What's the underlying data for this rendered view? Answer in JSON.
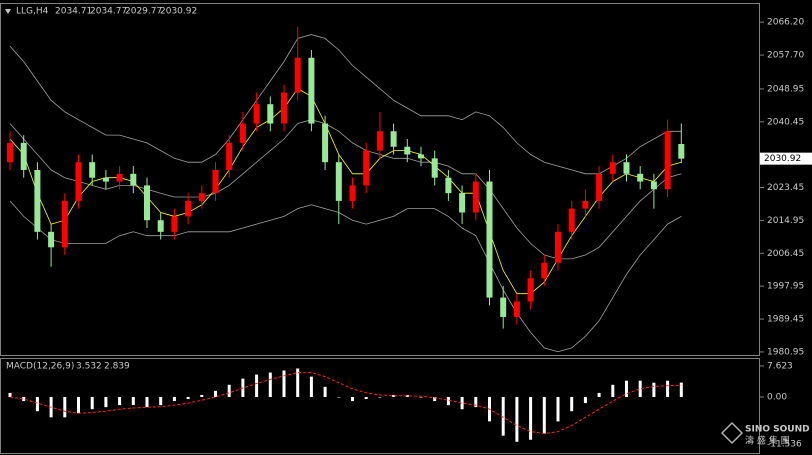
{
  "chart_data": [
    {
      "type": "candlestick",
      "symbol": "LLG,H4",
      "last_bar": [
        2034.71,
        2034.77,
        2029.77,
        2030.92
      ],
      "up_color": "#ff0000",
      "down_color": "#98e898",
      "open": [
        2030,
        2035,
        2028,
        2012,
        2008,
        2020,
        2030,
        2026,
        2025,
        2027,
        2024,
        2015,
        2012,
        2016,
        2020,
        2022,
        2028,
        2035,
        2040,
        2045,
        2040,
        2048,
        2057,
        2040,
        2030,
        2020,
        2024,
        2033,
        2038,
        2034,
        2032,
        2031,
        2026,
        2022,
        2017,
        2025,
        1995,
        1990,
        1994,
        2000,
        2004,
        2012,
        2018,
        2020,
        2027,
        2030,
        2027,
        2025,
        2023,
        2034.71
      ],
      "high": [
        2038,
        2037,
        2030,
        2014,
        2022,
        2032,
        2032,
        2028,
        2029,
        2029,
        2026,
        2017,
        2018,
        2022,
        2024,
        2030,
        2037,
        2043,
        2048,
        2047,
        2050,
        2065,
        2059,
        2042,
        2032,
        2026,
        2035,
        2043,
        2040,
        2036,
        2034,
        2033,
        2028,
        2024,
        2027,
        2028,
        1998,
        1996,
        2002,
        2006,
        2014,
        2020,
        2023,
        2029,
        2032,
        2032,
        2029,
        2027,
        2041,
        2040
      ],
      "low": [
        2028,
        2026,
        2010,
        2003,
        2006,
        2018,
        2024,
        2023,
        2023,
        2022,
        2013,
        2010,
        2010,
        2014,
        2018,
        2020,
        2026,
        2033,
        2038,
        2038,
        2038,
        2046,
        2038,
        2028,
        2014,
        2018,
        2022,
        2031,
        2032,
        2030,
        2029,
        2024,
        2020,
        2014,
        2015,
        1993,
        1987,
        1988,
        1992,
        1998,
        2002,
        2010,
        2016,
        2018,
        2025,
        2025,
        2023,
        2018,
        2021,
        2029.77
      ],
      "close": [
        2035,
        2028,
        2012,
        2008,
        2020,
        2030,
        2026,
        2025,
        2027,
        2024,
        2015,
        2012,
        2016,
        2020,
        2022,
        2028,
        2035,
        2040,
        2045,
        2040,
        2048,
        2057,
        2040,
        2030,
        2020,
        2024,
        2033,
        2038,
        2034,
        2032,
        2031,
        2026,
        2022,
        2017,
        2025,
        1995,
        1990,
        1994,
        2000,
        2004,
        2012,
        2018,
        2020,
        2027,
        2030,
        2027,
        2025,
        2023,
        2038,
        2030.92
      ],
      "series": [
        {
          "color": "#a0a0a0",
          "values": [
            2060,
            2056,
            2051,
            2046,
            2043,
            2041,
            2039,
            2037,
            2037,
            2036,
            2035,
            2033,
            2031,
            2030,
            2030,
            2032,
            2036,
            2041,
            2046,
            2051,
            2056,
            2062,
            2063,
            2062,
            2059,
            2055,
            2052,
            2049,
            2046,
            2044,
            2042,
            2042,
            2042,
            2041,
            2043,
            2042,
            2039,
            2035,
            2032,
            2030,
            2029,
            2028,
            2027,
            2027,
            2029,
            2031,
            2034,
            2036,
            2038,
            2038
          ]
        },
        {
          "color": "#a0a0a0",
          "values": [
            2040,
            2036,
            2032,
            2028,
            2026,
            2025,
            2024,
            2023,
            2024,
            2024,
            2023,
            2022,
            2021,
            2021,
            2021,
            2022,
            2024,
            2027,
            2030,
            2033,
            2036,
            2040,
            2041,
            2040,
            2038,
            2035,
            2033,
            2032,
            2031,
            2031,
            2030,
            2030,
            2029,
            2027,
            2027,
            2023,
            2018,
            2013,
            2009,
            2006,
            2005,
            2005,
            2006,
            2008,
            2012,
            2016,
            2020,
            2023,
            2026,
            2027
          ]
        },
        {
          "color": "#a0a0a0",
          "values": [
            2020,
            2016,
            2013,
            2010,
            2009,
            2009,
            2009,
            2009,
            2011,
            2012,
            2011,
            2011,
            2011,
            2012,
            2012,
            2012,
            2012,
            2013,
            2014,
            2015,
            2016,
            2018,
            2019,
            2018,
            2017,
            2015,
            2014,
            2015,
            2016,
            2018,
            2018,
            2018,
            2016,
            2013,
            2011,
            2004,
            1997,
            1991,
            1986,
            1982,
            1981,
            1982,
            1985,
            1989,
            1995,
            2001,
            2006,
            2010,
            2014,
            2016
          ]
        },
        {
          "color": "#ffff00",
          "values": [
            2036,
            2032,
            2022,
            2014,
            2015,
            2021,
            2025,
            2026,
            2026,
            2025,
            2021,
            2017,
            2016,
            2017,
            2019,
            2023,
            2028,
            2034,
            2039,
            2041,
            2044,
            2049,
            2047,
            2040,
            2032,
            2027,
            2027,
            2031,
            2033,
            2033,
            2032,
            2029,
            2026,
            2022,
            2022,
            2012,
            2002,
            1996,
            1996,
            1999,
            2005,
            2011,
            2016,
            2021,
            2025,
            2027,
            2026,
            2025,
            2029,
            2030
          ]
        }
      ],
      "ylim": [
        1979.9,
        2070.9
      ],
      "yticks": [
        {
          "value": 2066.2,
          "label": "2066.20"
        },
        {
          "value": 2057.7,
          "label": "2057.70"
        },
        2048.95,
        {
          "value": 2040.45,
          "label": "2040.45"
        },
        2023.45,
        2014.95,
        2006.45,
        1997.95,
        1989.45,
        1980.95
      ]
    },
    {
      "type": "macd",
      "title": "MACD(12,26,9)",
      "last_values": [
        3.532,
        2.839
      ],
      "series": [
        {
          "color": "#ffffff",
          "values": [
            1,
            -1,
            -3.5,
            -5,
            -5,
            -4,
            -3,
            -2.5,
            -2,
            -2,
            -2.5,
            -2,
            -1,
            -0.5,
            0.5,
            1.5,
            3,
            4.5,
            5.5,
            6,
            6.5,
            7,
            5,
            2.5,
            0,
            -1,
            -0.5,
            0,
            0.5,
            0.5,
            0,
            -1,
            -2,
            -3,
            -2.5,
            -6,
            -9.5,
            -11,
            -10.5,
            -9,
            -6,
            -3.5,
            -1.5,
            1,
            3,
            4,
            4,
            3.5,
            4,
            3.532
          ]
        },
        {
          "color": "#ff2020",
          "values": [
            0,
            -0.5,
            -1.5,
            -2.5,
            -3.5,
            -4,
            -3.8,
            -3.5,
            -3,
            -2.7,
            -2.5,
            -2.4,
            -2,
            -1.5,
            -0.8,
            0,
            1,
            2.2,
            3.3,
            4.3,
            5.2,
            6,
            6,
            5,
            3.5,
            2,
            1,
            0.5,
            0.3,
            0.3,
            0.2,
            -0.2,
            -0.8,
            -1.5,
            -2,
            -3,
            -5,
            -7,
            -8.5,
            -9,
            -8.5,
            -7,
            -5,
            -3,
            -1,
            0.8,
            2,
            2.6,
            2.8,
            2.839
          ]
        }
      ],
      "ylim": [
        -13.76,
        9.33
      ],
      "yticks": [
        7.623,
        {
          "value": 0,
          "label": "0.00"
        },
        -11.536
      ]
    }
  ],
  "watermark": {
    "brand": "SINO SOUND",
    "chinese": "濤 盛 集 團"
  }
}
